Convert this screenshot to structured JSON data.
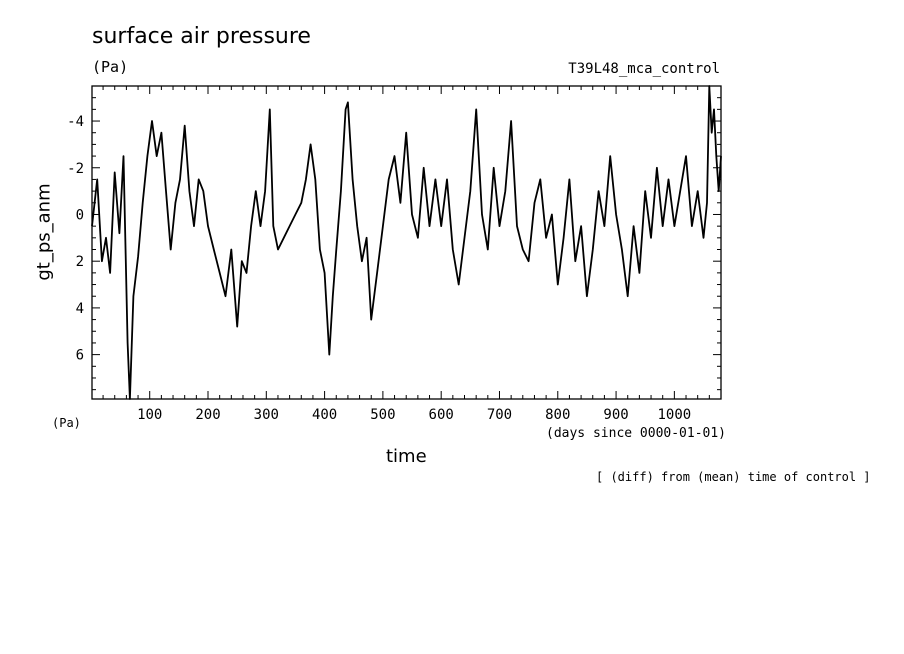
{
  "chart_data": {
    "type": "line",
    "title": "surface air pressure",
    "units_top": "(Pa)",
    "units_bottom": "(Pa)",
    "run_name": "T39L48_mca_control",
    "xlabel": "time",
    "x_units": "(days since 0000-01-01)",
    "ylabel": "gt_ps_anm",
    "note": "[ (diff) from (mean) time of control ]",
    "xlim": [
      1,
      1080
    ],
    "ylim": [
      -5.5,
      7.9
    ],
    "y_inverted": true,
    "x_ticks": [
      100,
      200,
      300,
      400,
      500,
      600,
      700,
      800,
      900,
      1000
    ],
    "y_ticks": [
      -4,
      -2,
      0,
      2,
      4,
      6
    ],
    "series": [
      {
        "x": [
          1,
          10,
          18,
          25,
          32,
          40,
          48,
          55,
          62,
          66,
          72,
          80,
          88,
          96,
          104,
          112,
          120,
          128,
          136,
          144,
          152,
          160,
          168,
          176,
          184,
          192,
          200,
          210,
          220,
          230,
          240,
          250,
          258,
          266,
          274,
          282,
          290,
          298,
          306,
          312,
          320,
          330,
          340,
          350,
          360,
          368,
          376,
          384,
          392,
          400,
          408,
          414,
          420,
          428,
          436,
          440,
          448,
          456,
          464,
          472,
          480,
          490,
          500,
          510,
          520,
          530,
          540,
          550,
          560,
          570,
          580,
          590,
          600,
          610,
          620,
          630,
          640,
          650,
          660,
          670,
          680,
          690,
          700,
          710,
          720,
          730,
          740,
          750,
          760,
          770,
          780,
          790,
          800,
          810,
          820,
          830,
          840,
          850,
          860,
          870,
          880,
          890,
          900,
          910,
          920,
          930,
          940,
          950,
          960,
          970,
          980,
          990,
          1000,
          1010,
          1020,
          1030,
          1040,
          1050,
          1056,
          1060,
          1064,
          1068,
          1072,
          1076,
          1080
        ],
        "values": [
          0.5,
          -1.5,
          2.0,
          1.0,
          2.5,
          -1.8,
          0.8,
          -2.5,
          5.5,
          7.9,
          3.5,
          1.8,
          -0.5,
          -2.5,
          -4.0,
          -2.5,
          -3.5,
          -1.0,
          1.5,
          -0.5,
          -1.5,
          -3.8,
          -1.0,
          0.5,
          -1.5,
          -1.0,
          0.5,
          1.5,
          2.5,
          3.5,
          1.5,
          4.8,
          2.0,
          2.5,
          0.5,
          -1.0,
          0.5,
          -1.0,
          -4.5,
          0.5,
          1.5,
          1.0,
          0.5,
          0.0,
          -0.5,
          -1.5,
          -3.0,
          -1.5,
          1.5,
          2.5,
          6.0,
          3.5,
          1.5,
          -1.0,
          -4.5,
          -4.8,
          -1.5,
          0.5,
          2.0,
          1.0,
          4.5,
          2.5,
          0.5,
          -1.5,
          -2.5,
          -0.5,
          -3.5,
          0.0,
          1.0,
          -2.0,
          0.5,
          -1.5,
          0.5,
          -1.5,
          1.5,
          3.0,
          1.0,
          -1.0,
          -4.5,
          0.0,
          1.5,
          -2.0,
          0.5,
          -1.0,
          -4.0,
          0.5,
          1.5,
          2.0,
          -0.5,
          -1.5,
          1.0,
          0.0,
          3.0,
          1.0,
          -1.5,
          2.0,
          0.5,
          3.5,
          1.5,
          -1.0,
          0.5,
          -2.5,
          0.0,
          1.5,
          3.5,
          0.5,
          2.5,
          -1.0,
          1.0,
          -2.0,
          0.5,
          -1.5,
          0.5,
          -1.0,
          -2.5,
          0.5,
          -1.0,
          1.0,
          -0.5,
          -5.5,
          -3.5,
          -4.5,
          -2.5,
          -1.0,
          -2.5
        ]
      }
    ]
  }
}
